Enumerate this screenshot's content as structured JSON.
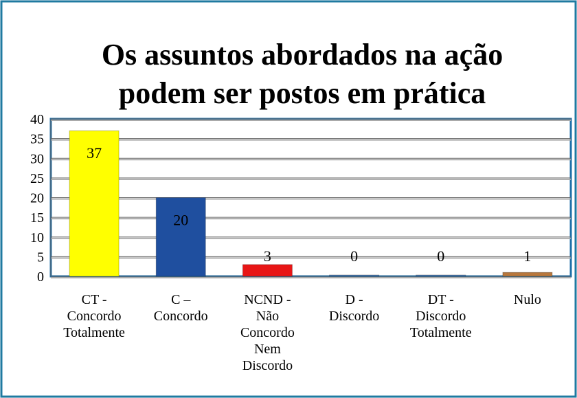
{
  "chart_data": {
    "type": "bar",
    "title": [
      "Os assuntos abordados na ação",
      "podem ser postos em prática"
    ],
    "categories": [
      "CT -\nConcordo\nTotalmente",
      "C –\nConcordo",
      "NCND -\nNão\nConcordo\nNem\nDiscordo",
      "D -\nDiscordo",
      "DT -\nDiscordo\nTotalmente",
      "Nulo"
    ],
    "values": [
      37,
      20,
      3,
      0,
      0,
      1
    ],
    "colors": [
      "#ffff00",
      "#1f4f9f",
      "#e81616",
      "#4a7ab0",
      "#4a7ab0",
      "#b8773c"
    ],
    "ylim": [
      0,
      40
    ],
    "yticks": [
      0,
      5,
      10,
      15,
      20,
      25,
      30,
      35,
      40
    ],
    "grid": true
  }
}
